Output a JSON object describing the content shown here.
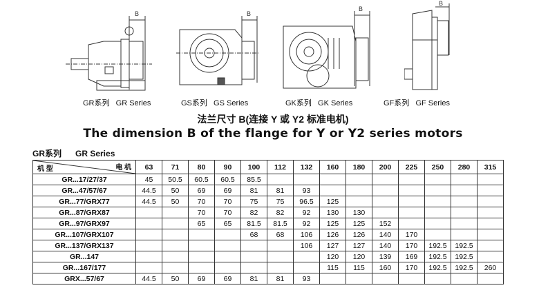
{
  "drawings": [
    {
      "name": "gr",
      "caption": "GR系列   GR Series",
      "dimension_label": "B"
    },
    {
      "name": "gs",
      "caption": "GS系列   GS Series",
      "dimension_label": "B"
    },
    {
      "name": "gk",
      "caption": "GK系列   GK Series",
      "dimension_label": "B"
    },
    {
      "name": "gf",
      "caption": "GF系列   GF Series",
      "dimension_label": "B"
    }
  ],
  "title_cn": "法兰尺寸 B(连接 Y 或 Y2 标准电机)",
  "title_en": "The dimension B of the flange for Y or Y2 series motors",
  "series_label": "GR系列      GR Series",
  "table": {
    "corner_motor": "电 机",
    "corner_type": "机 型",
    "columns": [
      "63",
      "71",
      "80",
      "90",
      "100",
      "112",
      "132",
      "160",
      "180",
      "200",
      "225",
      "250",
      "280",
      "315"
    ],
    "rows": [
      {
        "model": "GR...17/27/37",
        "values": [
          "45",
          "50.5",
          "60.5",
          "60.5",
          "85.5",
          "",
          "",
          "",
          "",
          "",
          "",
          "",
          "",
          ""
        ]
      },
      {
        "model": "GR...47/57/67",
        "values": [
          "44.5",
          "50",
          "69",
          "69",
          "81",
          "81",
          "93",
          "",
          "",
          "",
          "",
          "",
          "",
          ""
        ]
      },
      {
        "model": "GR...77/GRX77",
        "values": [
          "44.5",
          "50",
          "70",
          "70",
          "75",
          "75",
          "96.5",
          "125",
          "",
          "",
          "",
          "",
          "",
          ""
        ]
      },
      {
        "model": "GR...87/GRX87",
        "values": [
          "",
          "",
          "70",
          "70",
          "82",
          "82",
          "92",
          "130",
          "130",
          "",
          "",
          "",
          "",
          ""
        ]
      },
      {
        "model": "GR...97/GRX97",
        "values": [
          "",
          "",
          "65",
          "65",
          "81.5",
          "81.5",
          "92",
          "125",
          "125",
          "152",
          "",
          "",
          "",
          ""
        ]
      },
      {
        "model": "GR...107/GRX107",
        "values": [
          "",
          "",
          "",
          "",
          "68",
          "68",
          "106",
          "126",
          "126",
          "140",
          "170",
          "",
          "",
          ""
        ]
      },
      {
        "model": "GR...137/GRX137",
        "values": [
          "",
          "",
          "",
          "",
          "",
          "",
          "106",
          "127",
          "127",
          "140",
          "170",
          "192.5",
          "192.5",
          ""
        ]
      },
      {
        "model": "GR...147",
        "values": [
          "",
          "",
          "",
          "",
          "",
          "",
          "",
          "120",
          "120",
          "139",
          "169",
          "192.5",
          "192.5",
          ""
        ]
      },
      {
        "model": "GR...167/177",
        "values": [
          "",
          "",
          "",
          "",
          "",
          "",
          "",
          "115",
          "115",
          "160",
          "170",
          "192.5",
          "192.5",
          "260"
        ]
      },
      {
        "model": "GRX...57/67",
        "values": [
          "44.5",
          "50",
          "69",
          "69",
          "81",
          "81",
          "93",
          "",
          "",
          "",
          "",
          "",
          "",
          ""
        ]
      }
    ]
  }
}
